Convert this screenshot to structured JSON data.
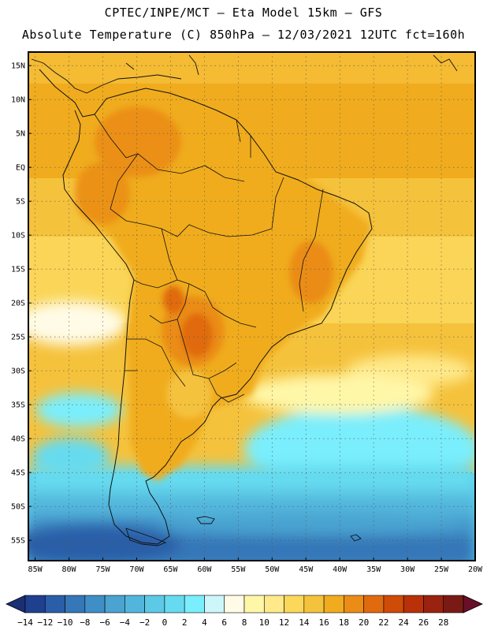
{
  "header": {
    "line1": "CPTEC/INPE/MCT —  Eta Model 15km — GFS",
    "line2": "Absolute Temperature (C) 850hPa — 12/03/2021 12UTC fct=160h"
  },
  "map": {
    "lat_labels": [
      "15N",
      "10N",
      "5N",
      "EQ",
      "5S",
      "10S",
      "15S",
      "20S",
      "25S",
      "30S",
      "35S",
      "40S",
      "45S",
      "50S",
      "55S"
    ],
    "lat_values": [
      15,
      10,
      5,
      0,
      -5,
      -10,
      -15,
      -20,
      -25,
      -30,
      -35,
      -40,
      -45,
      -50,
      -55
    ],
    "lon_labels": [
      "85W",
      "80W",
      "75W",
      "70W",
      "65W",
      "60W",
      "55W",
      "50W",
      "45W",
      "40W",
      "35W",
      "30W",
      "25W",
      "20W"
    ],
    "lon_values": [
      -85,
      -80,
      -75,
      -70,
      -65,
      -60,
      -55,
      -50,
      -45,
      -40,
      -35,
      -30,
      -25,
      -20
    ],
    "lat_range": [
      -58,
      17
    ],
    "lon_range": [
      -86,
      -20
    ]
  },
  "colorbar": {
    "tick_labels": [
      "-14",
      "-12",
      "-10",
      "-8",
      "-6",
      "-4",
      "-2",
      "0",
      "2",
      "4",
      "6",
      "8",
      "10",
      "12",
      "14",
      "16",
      "18",
      "20",
      "22",
      "24",
      "26",
      "28"
    ],
    "colors": [
      "#1f3f8f",
      "#2a5ea8",
      "#3577b8",
      "#3f8ec6",
      "#4aa3d0",
      "#52b6dc",
      "#5cc9e6",
      "#66dbef",
      "#7aeefc",
      "#cdf6fb",
      "#fffbe6",
      "#fff7a8",
      "#ffe98a",
      "#fbd75a",
      "#f5c23c",
      "#f0ac1e",
      "#ea8c16",
      "#e06a0e",
      "#cf4b08",
      "#b83108",
      "#9a2210",
      "#7a1a14"
    ],
    "under_color": "#1a2f74",
    "over_color": "#6a0f2a"
  }
}
